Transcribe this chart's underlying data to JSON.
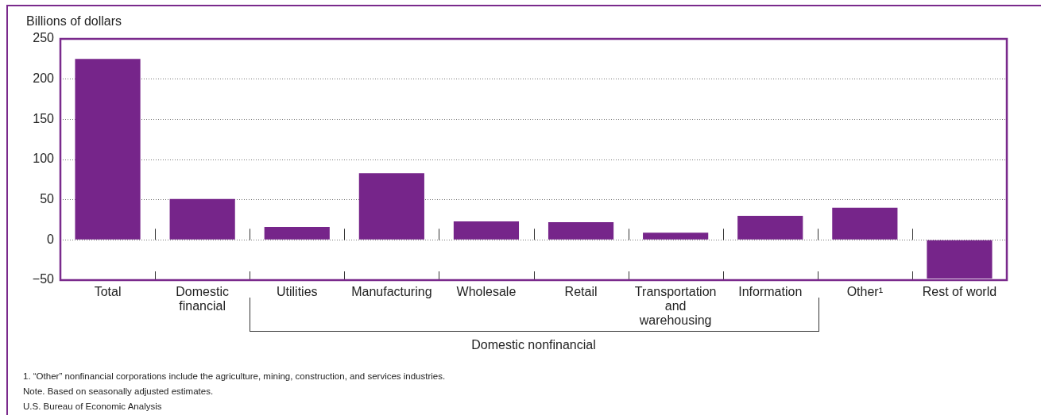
{
  "chart_data": {
    "type": "bar",
    "ylabel": "Billions of dollars",
    "categories": [
      "Total",
      "Domestic financial",
      "Utilities",
      "Manufacturing",
      "Wholesale",
      "Retail",
      "Transportation and warehousing",
      "Information",
      "Other¹",
      "Rest of world"
    ],
    "values": [
      225,
      51,
      16,
      83,
      23,
      22,
      9,
      30,
      40,
      -48
    ],
    "color": "#76258a",
    "ylim": [
      -50,
      250
    ],
    "yticks": [
      -50,
      0,
      50,
      100,
      150,
      200,
      250
    ],
    "grid": "y",
    "legend": false,
    "annotations": [
      "Domestic nonfinancial",
      "1. “Other” nonfinancial corporations include the agriculture, mining, construction, and services industries.",
      "Note. Based on seasonally adjusted estimates.",
      "U.S. Bureau of Economic Analysis"
    ]
  }
}
